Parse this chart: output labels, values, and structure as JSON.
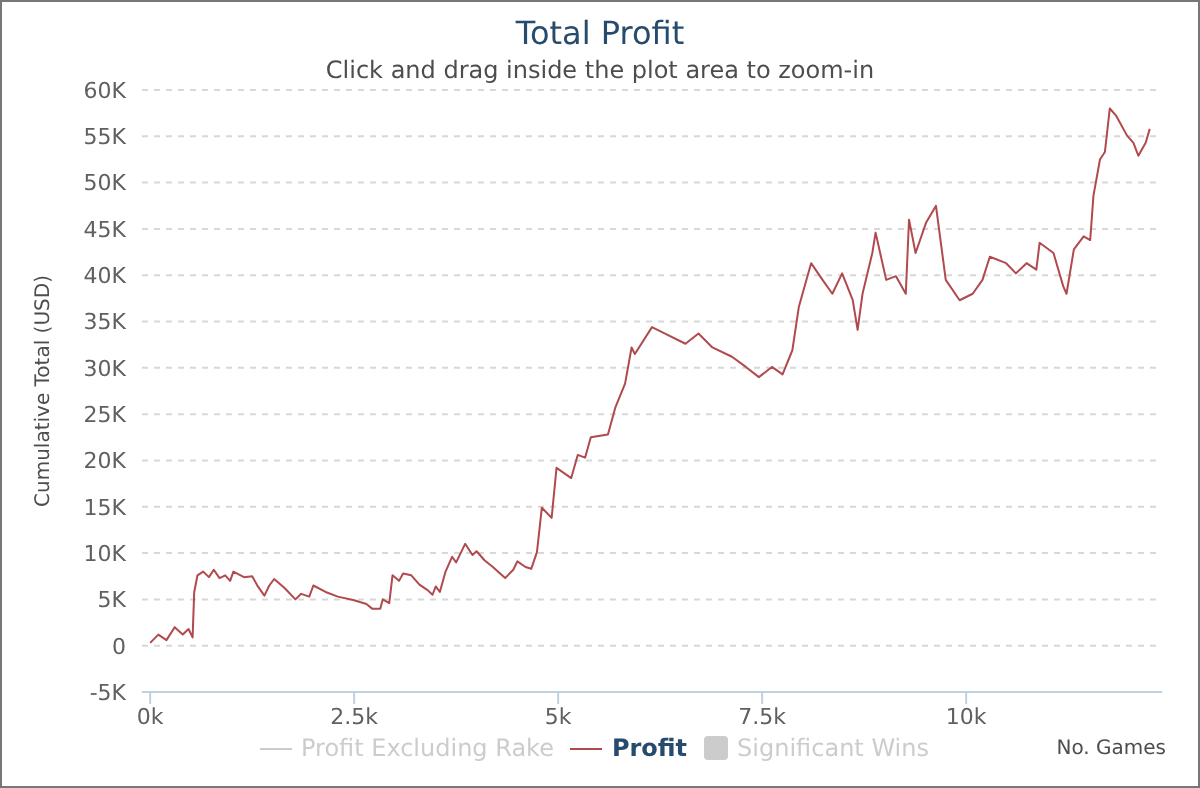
{
  "chart_data": {
    "type": "line",
    "title": "Total Profit",
    "subtitle": "Click and drag inside the plot area to zoom-in",
    "xlabel": "No. Games",
    "ylabel": "Cumulative Total (USD)",
    "x": [
      0,
      100,
      200,
      300,
      400,
      470,
      520,
      540,
      580,
      650,
      720,
      780,
      850,
      920,
      980,
      1020,
      1150,
      1250,
      1320,
      1400,
      1460,
      1520,
      1650,
      1780,
      1850,
      1950,
      2000,
      2150,
      2300,
      2500,
      2650,
      2720,
      2820,
      2850,
      2930,
      2970,
      3050,
      3100,
      3200,
      3300,
      3400,
      3460,
      3500,
      3550,
      3620,
      3700,
      3750,
      3860,
      3950,
      4000,
      4100,
      4200,
      4350,
      4450,
      4500,
      4600,
      4670,
      4740,
      4800,
      4920,
      4980,
      5160,
      5240,
      5330,
      5400,
      5610,
      5700,
      5820,
      5900,
      5940,
      6150,
      6310,
      6560,
      6720,
      6890,
      7130,
      7300,
      7460,
      7620,
      7750,
      7870,
      7950,
      8100,
      8240,
      8360,
      8480,
      8610,
      8670,
      8730,
      8850,
      8890,
      9020,
      9140,
      9260,
      9300,
      9380,
      9510,
      9630,
      9750,
      9920,
      10080,
      10200,
      10290,
      10490,
      10610,
      10740,
      10860,
      10900,
      11070,
      11190,
      11230,
      11320,
      11440,
      11520,
      11560,
      11640,
      11700,
      11760,
      11840,
      11970,
      12050,
      12110,
      12200,
      12250
    ],
    "series": [
      {
        "name": "Profit Excluding Rake",
        "color": "#cccccc",
        "values": [
          null,
          null,
          null,
          null,
          null,
          null,
          null,
          null,
          null,
          null,
          null,
          null,
          null,
          null,
          null,
          null,
          null,
          null,
          null,
          null,
          null,
          null,
          null,
          null,
          null,
          null,
          null,
          null,
          null,
          null,
          null,
          null,
          null,
          null,
          null,
          null,
          null,
          null,
          null,
          null,
          null,
          null,
          null,
          null,
          null,
          null,
          null,
          null,
          null,
          null,
          null,
          null,
          null,
          null,
          null,
          null,
          null,
          null,
          null,
          null,
          null,
          null,
          null,
          null,
          null,
          null,
          null,
          null,
          null,
          null,
          null,
          null,
          null,
          null,
          null,
          null,
          null,
          null,
          null,
          null,
          null,
          null,
          null,
          null,
          null,
          null,
          null,
          null,
          null,
          null,
          null,
          null,
          null,
          null,
          null,
          null,
          null,
          null,
          null,
          null,
          null,
          null,
          null,
          null,
          null,
          null,
          null,
          null,
          null,
          null,
          null,
          null,
          null,
          null,
          null,
          null,
          null,
          null,
          null,
          null,
          null,
          null,
          null,
          null
        ]
      },
      {
        "name": "Profit",
        "color": "#b04a4e",
        "values": [
          300,
          1200,
          600,
          2000,
          1200,
          1800,
          900,
          5800,
          7600,
          8000,
          7400,
          8200,
          7300,
          7600,
          7000,
          8000,
          7400,
          7500,
          6400,
          5400,
          6500,
          7200,
          6200,
          5000,
          5600,
          5300,
          6500,
          5800,
          5300,
          4900,
          4500,
          4000,
          4000,
          5000,
          4600,
          7600,
          7000,
          7800,
          7600,
          6600,
          6000,
          5500,
          6400,
          5800,
          8000,
          9600,
          9000,
          11000,
          9800,
          10200,
          9200,
          8500,
          7300,
          8200,
          9100,
          8500,
          8300,
          10100,
          14900,
          13800,
          19200,
          18100,
          20600,
          20300,
          22500,
          22800,
          25700,
          28300,
          32200,
          31500,
          34400,
          33700,
          32600,
          33700,
          32200,
          31200,
          30100,
          29000,
          30100,
          29300,
          31900,
          36600,
          41300,
          39500,
          38000,
          40200,
          37300,
          34100,
          38000,
          42400,
          44600,
          39500,
          39900,
          38000,
          46000,
          42400,
          45700,
          47500,
          39500,
          37300,
          38000,
          39500,
          42000,
          41300,
          40200,
          41300,
          40600,
          43500,
          42400,
          38800,
          38000,
          42800,
          44200,
          43800,
          48600,
          52500,
          53300,
          58000,
          57200,
          55100,
          54300,
          52900,
          54300,
          55800
        ]
      },
      {
        "name": "Significant Wins",
        "type": "area",
        "color": "#cccccc",
        "values": [
          null,
          null,
          null,
          null,
          null,
          null,
          null,
          null,
          null,
          null,
          null,
          null,
          null,
          null,
          null,
          null,
          null,
          null,
          null,
          null,
          null,
          null,
          null,
          null,
          null,
          null,
          null,
          null,
          null,
          null,
          null,
          null,
          null,
          null,
          null,
          null,
          null,
          null,
          null,
          null,
          null,
          null,
          null,
          null,
          null,
          null,
          null,
          null,
          null,
          null,
          null,
          null,
          null,
          null,
          null,
          null,
          null,
          null,
          null,
          null,
          null,
          null,
          null,
          null,
          null,
          null,
          null,
          null,
          null,
          null,
          null,
          null,
          null,
          null,
          null,
          null,
          null,
          null,
          null,
          null,
          null,
          null,
          null,
          null,
          null,
          null,
          null,
          null,
          null,
          null,
          null,
          null,
          null,
          null,
          null,
          null,
          null,
          null,
          null,
          null,
          null,
          null,
          null,
          null,
          null,
          null,
          null,
          null,
          null,
          null,
          null,
          null,
          null,
          null,
          null,
          null,
          null,
          null,
          null,
          null,
          null,
          null,
          null,
          null
        ]
      }
    ],
    "xlim": [
      -100,
      12400
    ],
    "xticks": [
      {
        "value": 0,
        "label": "0k"
      },
      {
        "value": 2500,
        "label": "2.5k"
      },
      {
        "value": 5000,
        "label": "5k"
      },
      {
        "value": 7500,
        "label": "7.5k"
      },
      {
        "value": 10000,
        "label": "10k"
      }
    ],
    "ylim": [
      -5000,
      60000
    ],
    "yticks": [
      {
        "value": -5000,
        "label": "-5K"
      },
      0,
      {
        "value": 5000,
        "label": "5K"
      },
      {
        "value": 10000,
        "label": "10K"
      },
      {
        "value": 15000,
        "label": "15K"
      },
      {
        "value": 20000,
        "label": "20K"
      },
      {
        "value": 25000,
        "label": "25K"
      },
      {
        "value": 30000,
        "label": "30K"
      },
      {
        "value": 35000,
        "label": "35K"
      },
      {
        "value": 40000,
        "label": "40K"
      },
      {
        "value": 45000,
        "label": "45K"
      },
      {
        "value": 50000,
        "label": "50K"
      },
      {
        "value": 55000,
        "label": "55K"
      },
      {
        "value": 60000,
        "label": "60K"
      }
    ],
    "grid": "y",
    "legend": "bottom",
    "marker": "none",
    "line_style": "solid"
  }
}
